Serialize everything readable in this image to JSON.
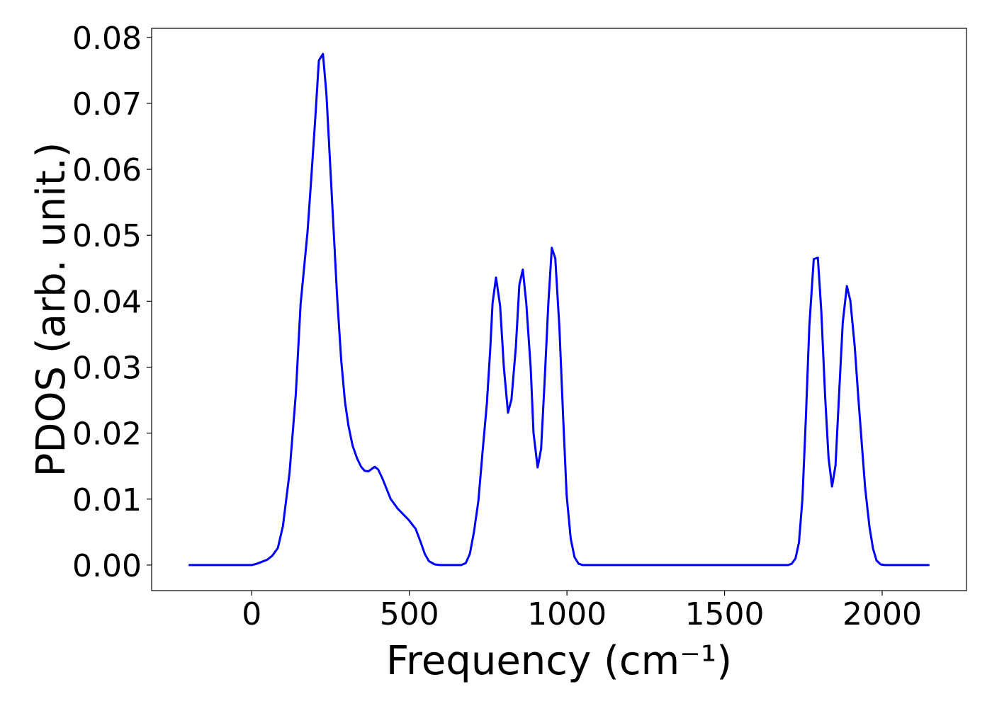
{
  "chart_data": {
    "type": "line",
    "xlabel": "Frequency (cm⁻¹)",
    "ylabel": "PDOS (arb. unit.)",
    "xlim": [
      -317.5,
      2267.5
    ],
    "ylim": [
      -0.003875,
      0.081375
    ],
    "xticks": [
      0,
      500,
      1000,
      1500,
      2000
    ],
    "yticks": [
      {
        "value": 0,
        "label": "0.00"
      },
      0.01,
      0.02,
      0.03,
      0.04,
      0.05,
      0.06,
      0.07,
      0.08
    ],
    "series": [
      {
        "color": "#0000ff",
        "x": [
          -200,
          0,
          16,
          49,
          65,
          83,
          99,
          120,
          140,
          155,
          177,
          188,
          202,
          213,
          226,
          237,
          251,
          271,
          284,
          296,
          307,
          320,
          334,
          347,
          358,
          370,
          390,
          401,
          414,
          430,
          441,
          464,
          497,
          520,
          535,
          549,
          562,
          580,
          598,
          665,
          679,
          692,
          705,
          719,
          732,
          746,
          757,
          764,
          775,
          788,
          800,
          813,
          824,
          838,
          849,
          860,
          871,
          885,
          894,
          907,
          918,
          929,
          941,
          952,
          963,
          976,
          988,
          999,
          1012,
          1024,
          1037,
          1050,
          1702,
          1713,
          1725,
          1736,
          1747,
          1758,
          1769,
          1783,
          1796,
          1807,
          1819,
          1830,
          1841,
          1852,
          1863,
          1875,
          1888,
          1899,
          1913,
          1924,
          1935,
          1946,
          1960,
          1971,
          1982,
          1995,
          2009,
          2150
        ],
        "values": [
          0,
          0,
          0.0002,
          0.0008,
          0.0014,
          0.0026,
          0.0059,
          0.014,
          0.026,
          0.0395,
          0.0505,
          0.058,
          0.068,
          0.0765,
          0.0775,
          0.0714,
          0.0588,
          0.0406,
          0.031,
          0.0247,
          0.0211,
          0.0181,
          0.0162,
          0.0149,
          0.0143,
          0.0142,
          0.0149,
          0.0145,
          0.0132,
          0.0113,
          0.01,
          0.0085,
          0.0069,
          0.0055,
          0.0036,
          0.0017,
          0.0006,
          0.0001,
          0,
          0,
          0.0003,
          0.0017,
          0.005,
          0.0097,
          0.017,
          0.0245,
          0.033,
          0.0397,
          0.0436,
          0.0393,
          0.0299,
          0.0231,
          0.0251,
          0.0331,
          0.0425,
          0.0448,
          0.0397,
          0.0299,
          0.02,
          0.0148,
          0.0176,
          0.0277,
          0.0397,
          0.0481,
          0.0465,
          0.0361,
          0.0224,
          0.0106,
          0.004,
          0.0012,
          0.0002,
          0,
          0,
          0.0002,
          0.001,
          0.0034,
          0.01,
          0.0224,
          0.0363,
          0.0464,
          0.0466,
          0.0384,
          0.0256,
          0.0162,
          0.0119,
          0.0151,
          0.0256,
          0.0368,
          0.0423,
          0.0401,
          0.0331,
          0.0256,
          0.0186,
          0.0117,
          0.0057,
          0.0025,
          0.0007,
          0.0001,
          0,
          0
        ]
      }
    ]
  }
}
